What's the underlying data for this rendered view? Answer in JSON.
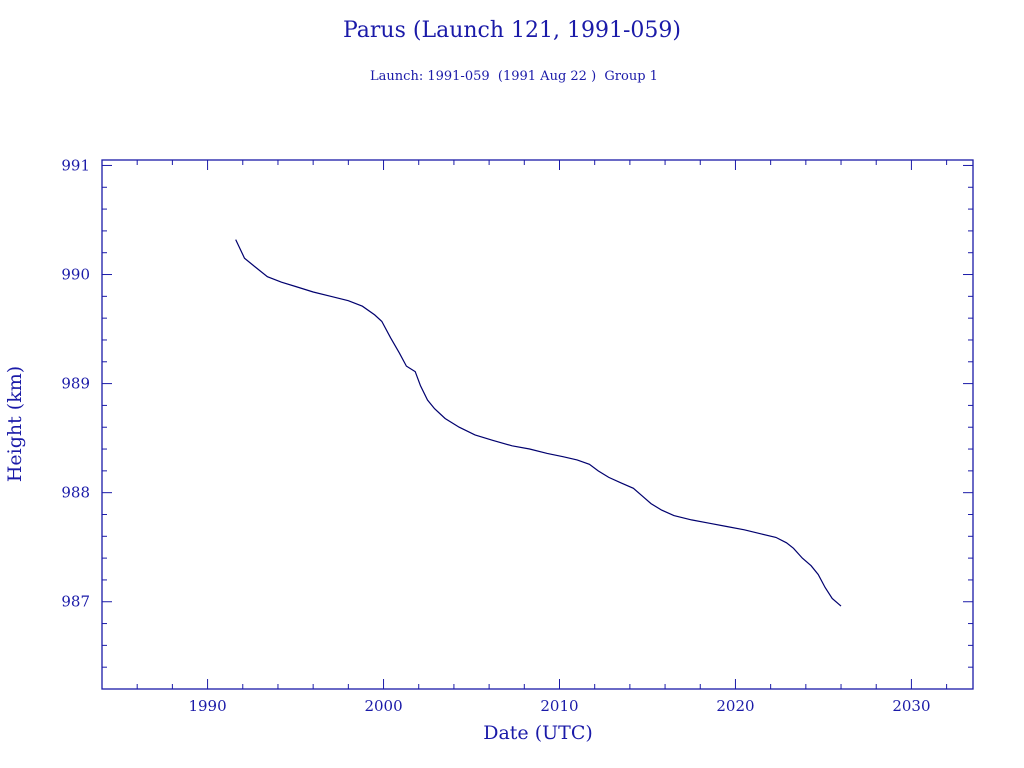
{
  "chart_data": {
    "type": "line",
    "title": "Parus (Launch 121, 1991-059)",
    "subtitle": "Launch: 1991-059  (1991 Aug 22 )  Group 1",
    "xlabel": "Date (UTC)",
    "ylabel": "Height (km)",
    "xlim": [
      1984,
      2033.5
    ],
    "ylim": [
      986.2,
      991.05
    ],
    "x_ticks": [
      "1990",
      "2000",
      "2010",
      "2020",
      "2030"
    ],
    "y_ticks": [
      "987",
      "988",
      "989",
      "990",
      "991"
    ],
    "grid": false,
    "legend": "none",
    "color": "#00006e",
    "axis_color": "#1a1aa8",
    "series": [
      {
        "x": [
          1991.6,
          1992.1,
          1992.7,
          1993.4,
          1994.2,
          1995.0,
          1996.0,
          1997.0,
          1998.0,
          1998.8,
          1999.5,
          1999.9,
          2000.4,
          2000.9,
          2001.3,
          2001.8,
          2002.1,
          2002.5,
          2002.9,
          2003.5,
          2004.3,
          2005.2,
          2006.2,
          2007.3,
          2008.3,
          2009.3,
          2010.2,
          2011.0,
          2011.7,
          2012.2,
          2012.8,
          2013.5,
          2014.2,
          2014.7,
          2015.2,
          2015.8,
          2016.5,
          2017.5,
          2018.5,
          2019.5,
          2020.5,
          2021.5,
          2022.3,
          2022.9,
          2023.3,
          2023.8,
          2024.3,
          2024.7,
          2025.1,
          2025.5,
          2026.0
        ],
        "y": [
          990.32,
          990.15,
          990.07,
          989.98,
          989.93,
          989.89,
          989.84,
          989.8,
          989.76,
          989.71,
          989.63,
          989.57,
          989.42,
          989.28,
          989.16,
          989.11,
          988.98,
          988.85,
          988.77,
          988.68,
          988.6,
          988.53,
          988.48,
          988.43,
          988.4,
          988.36,
          988.33,
          988.3,
          988.26,
          988.2,
          988.14,
          988.09,
          988.04,
          987.97,
          987.9,
          987.84,
          987.79,
          987.75,
          987.72,
          987.69,
          987.66,
          987.62,
          987.59,
          987.54,
          987.49,
          987.4,
          987.33,
          987.25,
          987.13,
          987.03,
          986.96
        ]
      }
    ]
  }
}
